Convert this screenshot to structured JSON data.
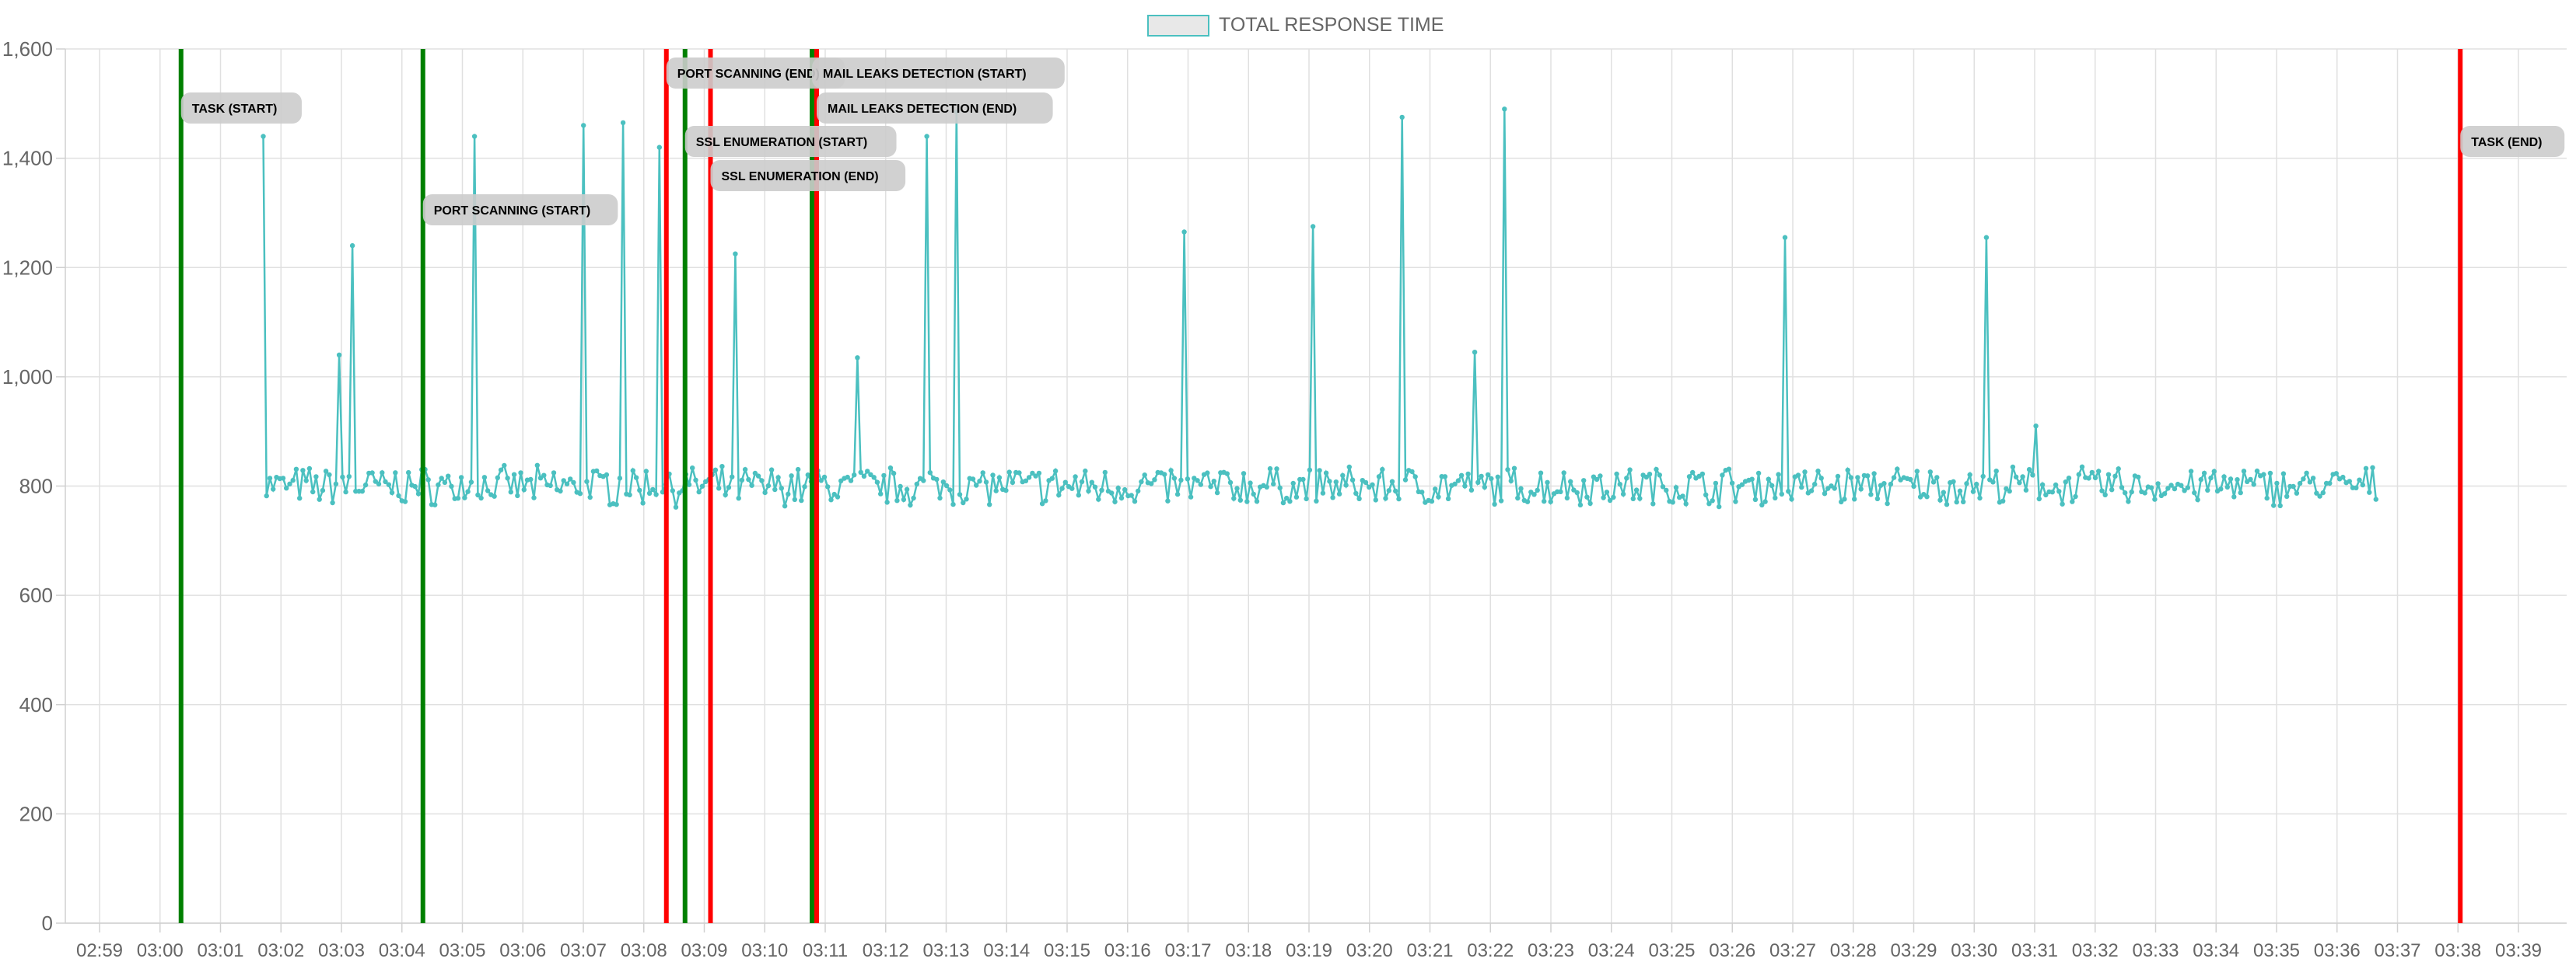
{
  "chart_data": {
    "type": "line",
    "title": "",
    "xlabel": "",
    "ylabel": "",
    "legend": {
      "position": "top-center",
      "entries": [
        "TOTAL RESPONSE TIME"
      ]
    },
    "grid": true,
    "ylim": [
      0,
      1600
    ],
    "y_ticks": [
      "0",
      "200",
      "400",
      "600",
      "800",
      "1,000",
      "1,200",
      "1,400",
      "1,600"
    ],
    "x_ticks": [
      "02:59",
      "03:00",
      "03:01",
      "03:02",
      "03:03",
      "03:04",
      "03:05",
      "03:06",
      "03:07",
      "03:08",
      "03:09",
      "03:10",
      "03:11",
      "03:12",
      "03:13",
      "03:14",
      "03:15",
      "03:16",
      "03:17",
      "03:18",
      "03:19",
      "03:20",
      "03:21",
      "03:22",
      "03:23",
      "03:24",
      "03:25",
      "03:26",
      "03:27",
      "03:28",
      "03:29",
      "03:30",
      "03:31",
      "03:32",
      "03:33",
      "03:34",
      "03:35",
      "03:36",
      "03:37",
      "03:38",
      "03:39"
    ],
    "series": [
      {
        "name": "TOTAL RESPONSE TIME",
        "color": "#4bc0c0",
        "fill": "#e8e8e8",
        "baseline_value": 800,
        "noise_amplitude": 30,
        "x_range": [
          "03:01",
          "03:36"
        ],
        "points": [
          [
            "03:01",
            1440
          ],
          [
            "03:02",
            1040
          ],
          [
            "03:03",
            1240
          ],
          [
            "03:05",
            1440
          ],
          [
            "03:06",
            1460
          ],
          [
            "03:07",
            1465
          ],
          [
            "03:08",
            1420
          ],
          [
            "03:09",
            1225
          ],
          [
            "03:11",
            1035
          ],
          [
            "03:12",
            1440
          ],
          [
            "03:13",
            1485
          ],
          [
            "03:16",
            1265
          ],
          [
            "03:19",
            1275
          ],
          [
            "03:20",
            1475
          ],
          [
            "03:21",
            1045
          ],
          [
            "03:22",
            1490
          ],
          [
            "03:26",
            1255
          ],
          [
            "03:30",
            1255
          ],
          [
            "03:31",
            910
          ]
        ]
      }
    ],
    "annotations": [
      {
        "time": "03:00",
        "kind": "start",
        "label": "TASK (START)",
        "color": "#008000"
      },
      {
        "time": "03:04",
        "kind": "start",
        "label": "PORT SCANNING (START)",
        "color": "#008000"
      },
      {
        "time": "03:08",
        "kind": "end",
        "label": "PORT SCANNING (END)",
        "color": "#ff0000"
      },
      {
        "time": "03:08",
        "kind": "start",
        "label": "SSL ENUMERATION (START)",
        "color": "#008000"
      },
      {
        "time": "03:09",
        "kind": "end",
        "label": "SSL ENUMERATION (END)",
        "color": "#ff0000"
      },
      {
        "time": "03:11",
        "kind": "start",
        "label": "MAIL LEAKS DETECTION (START)",
        "color": "#008000"
      },
      {
        "time": "03:11",
        "kind": "end",
        "label": "MAIL LEAKS DETECTION (END)",
        "color": "#ff0000"
      },
      {
        "time": "03:38",
        "kind": "end",
        "label": "TASK (END)",
        "color": "#ff0000"
      }
    ]
  }
}
